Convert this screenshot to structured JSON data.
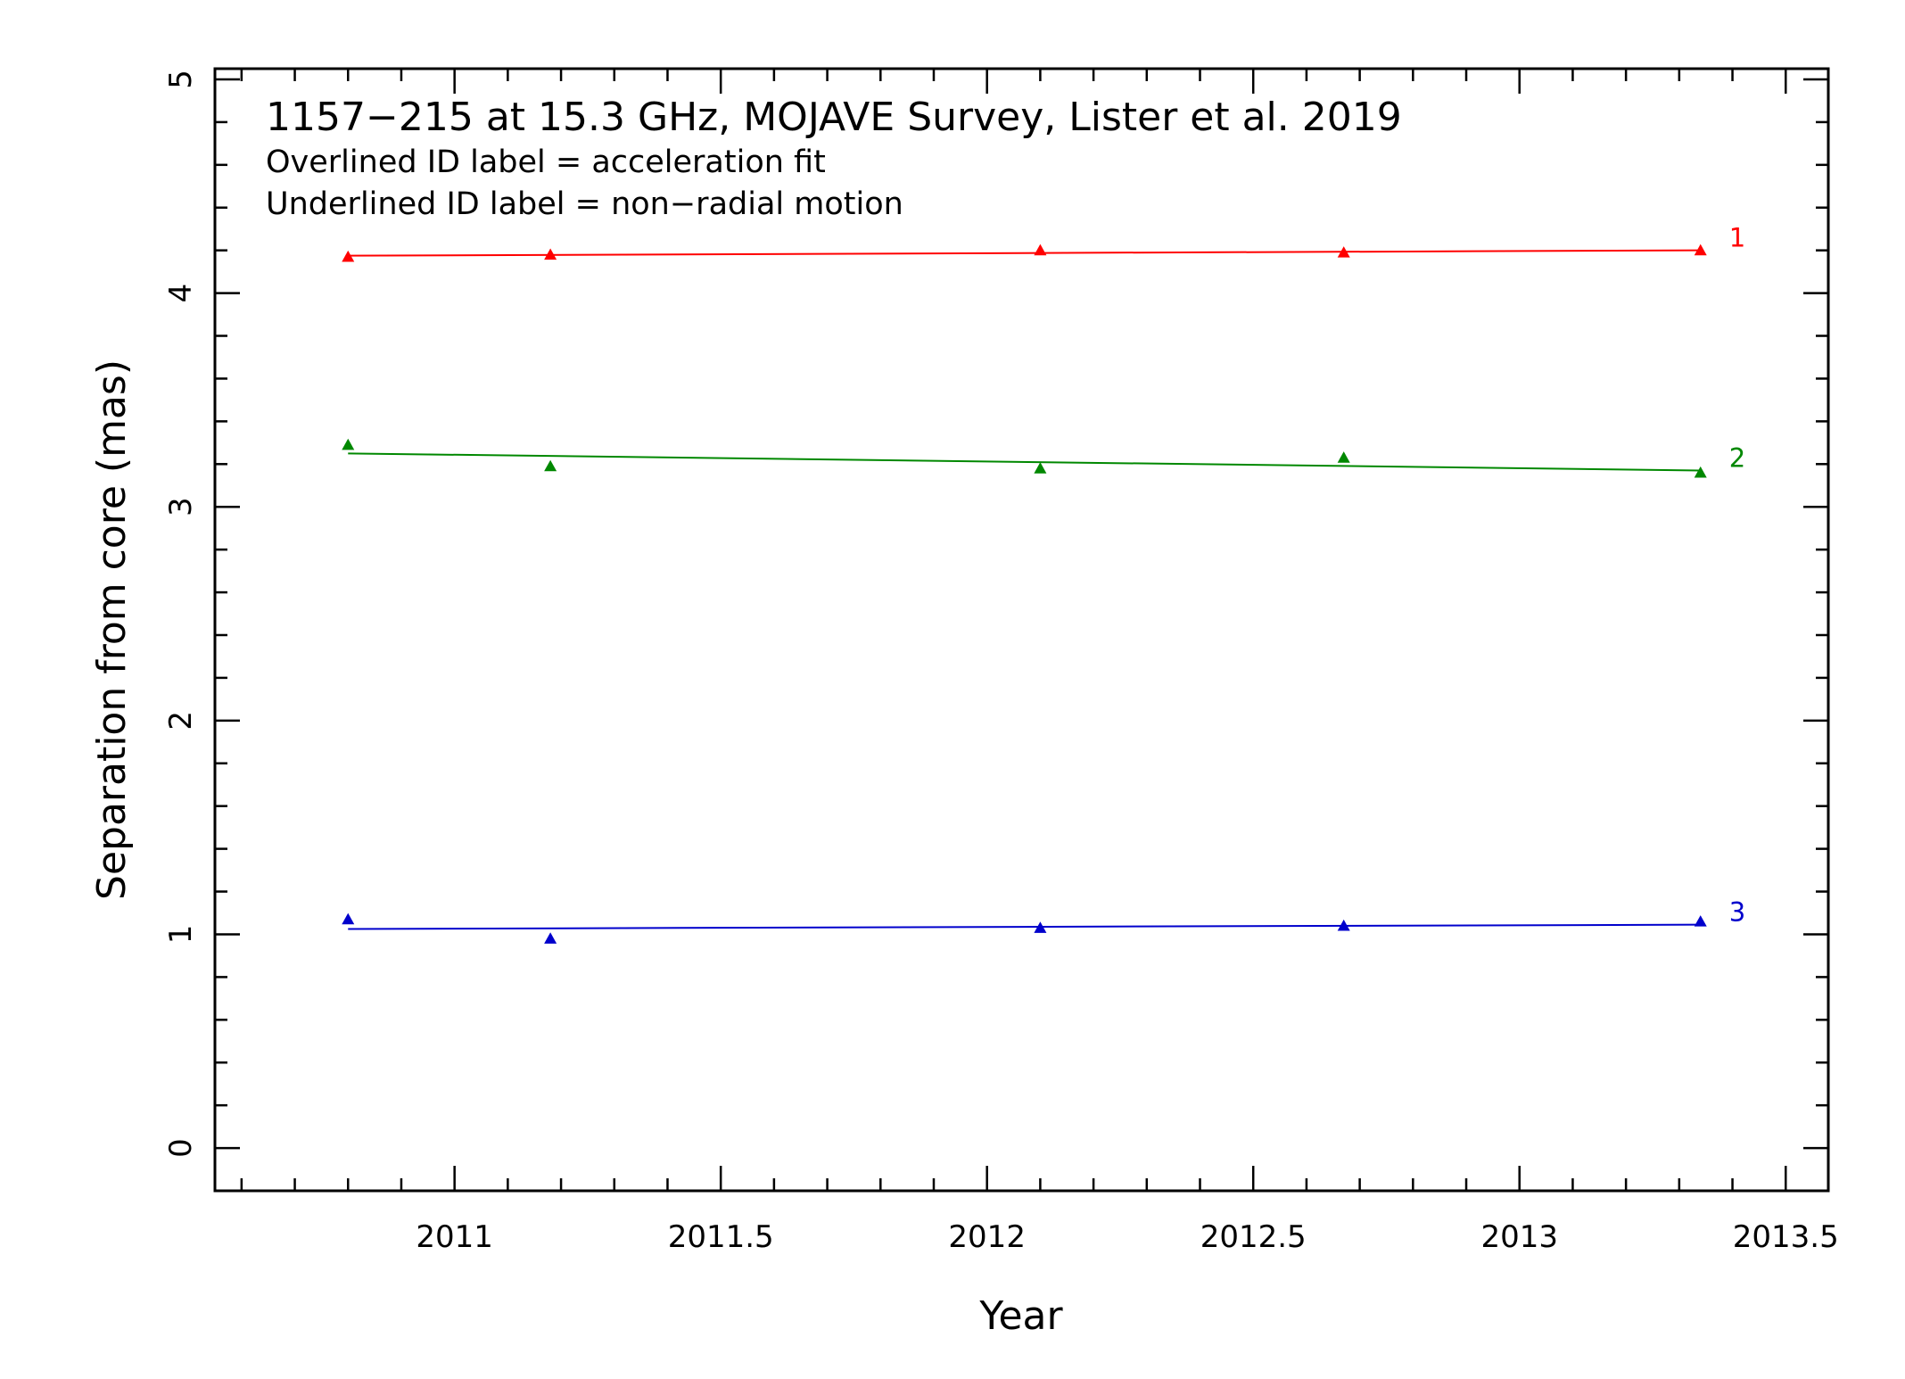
{
  "chart_data": {
    "type": "scatter",
    "title": "1157−215 at 15.3 GHz, MOJAVE Survey, Lister et al. 2019",
    "subtitle_lines": [
      "Overlined ID label = acceleration fit",
      "Underlined ID label = non−radial motion"
    ],
    "xlabel": "Year",
    "ylabel": "Separation from core (mas)",
    "xlim": [
      2010.55,
      2013.58
    ],
    "ylim": [
      -0.2,
      5.05
    ],
    "x_ticks": [
      2011,
      2011.5,
      2012,
      2012.5,
      2013,
      2013.5
    ],
    "x_tick_labels": [
      "2011",
      "2011.5",
      "2012",
      "2012.5",
      "2013",
      "2013.5"
    ],
    "y_ticks": [
      0,
      1,
      2,
      3,
      4,
      5
    ],
    "y_tick_labels": [
      "0",
      "1",
      "2",
      "3",
      "4",
      "5"
    ],
    "grid": false,
    "series": [
      {
        "name": "1",
        "color": "#ff0000",
        "x": [
          2010.8,
          2011.18,
          2012.1,
          2012.67,
          2013.34
        ],
        "y": [
          4.17,
          4.18,
          4.2,
          4.19,
          4.2
        ],
        "fit": [
          [
            2010.8,
            4.175
          ],
          [
            2013.34,
            4.2
          ]
        ]
      },
      {
        "name": "2",
        "color": "#008800",
        "x": [
          2010.8,
          2011.18,
          2012.1,
          2012.67,
          2013.34
        ],
        "y": [
          3.29,
          3.19,
          3.18,
          3.23,
          3.16
        ],
        "fit": [
          [
            2010.8,
            3.25
          ],
          [
            2013.34,
            3.17
          ]
        ]
      },
      {
        "name": "3",
        "color": "#0000cc",
        "x": [
          2010.8,
          2011.18,
          2012.1,
          2012.67,
          2013.34
        ],
        "y": [
          1.07,
          0.98,
          1.03,
          1.04,
          1.06
        ],
        "fit": [
          [
            2010.8,
            1.025
          ],
          [
            2013.34,
            1.045
          ]
        ]
      }
    ]
  }
}
